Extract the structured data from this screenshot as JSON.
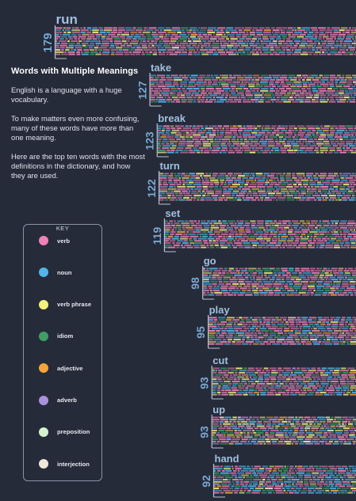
{
  "intro": {
    "title": "Words with Multiple Meanings",
    "paragraphs": [
      "English is a language with a huge vocabulary.",
      "To make matters even more confusing, many of these words have more than one meaning.",
      "Here are the top ten words with the most definitions in the dictionary, and how they are used."
    ]
  },
  "key": {
    "title": "KEY",
    "items": [
      {
        "label": "verb",
        "color": "#ee82b8"
      },
      {
        "label": "noun",
        "color": "#52b6ea"
      },
      {
        "label": "verb phrase",
        "color": "#f3f27c"
      },
      {
        "label": "idiom",
        "color": "#3f9f66"
      },
      {
        "label": "adjective",
        "color": "#f2a53a"
      },
      {
        "label": "adverb",
        "color": "#a892dc"
      },
      {
        "label": "preposition",
        "color": "#d3f2cf"
      },
      {
        "label": "interjection",
        "color": "#efe7d9"
      }
    ]
  },
  "chart_data": {
    "type": "bar",
    "categories": [
      "run",
      "take",
      "break",
      "turn",
      "set",
      "go",
      "play",
      "cut",
      "up",
      "hand"
    ],
    "values": [
      179,
      127,
      123,
      122,
      119,
      98,
      95,
      93,
      93,
      92
    ],
    "series": [
      {
        "name": "verb",
        "values": [
          0.58,
          0.55,
          0.5,
          0.5,
          0.5,
          0.5,
          0.5,
          0.5,
          0.3,
          0.35
        ]
      },
      {
        "name": "noun",
        "values": [
          0.22,
          0.22,
          0.25,
          0.2,
          0.2,
          0.2,
          0.25,
          0.2,
          0.15,
          0.3
        ]
      },
      {
        "name": "verb phrase",
        "values": [
          0.1,
          0.12,
          0.15,
          0.15,
          0.12,
          0.12,
          0.1,
          0.15,
          0.2,
          0.1
        ]
      },
      {
        "name": "idiom",
        "values": [
          0.06,
          0.06,
          0.06,
          0.1,
          0.1,
          0.1,
          0.08,
          0.1,
          0.1,
          0.15
        ]
      },
      {
        "name": "adjective",
        "values": [
          0.02,
          0.02,
          0.02,
          0.02,
          0.05,
          0.03,
          0.03,
          0.03,
          0.05,
          0.05
        ]
      },
      {
        "name": "adverb",
        "values": [
          0.01,
          0.02,
          0.01,
          0.02,
          0.02,
          0.03,
          0.02,
          0.02,
          0.1,
          0.03
        ]
      },
      {
        "name": "preposition",
        "values": [
          0,
          0,
          0,
          0,
          0,
          0,
          0,
          0,
          0.08,
          0
        ]
      },
      {
        "name": "interjection",
        "values": [
          0.01,
          0.01,
          0.01,
          0.01,
          0.01,
          0.02,
          0.02,
          0,
          0.02,
          0.02
        ]
      }
    ],
    "grid": false,
    "legend": "left"
  }
}
